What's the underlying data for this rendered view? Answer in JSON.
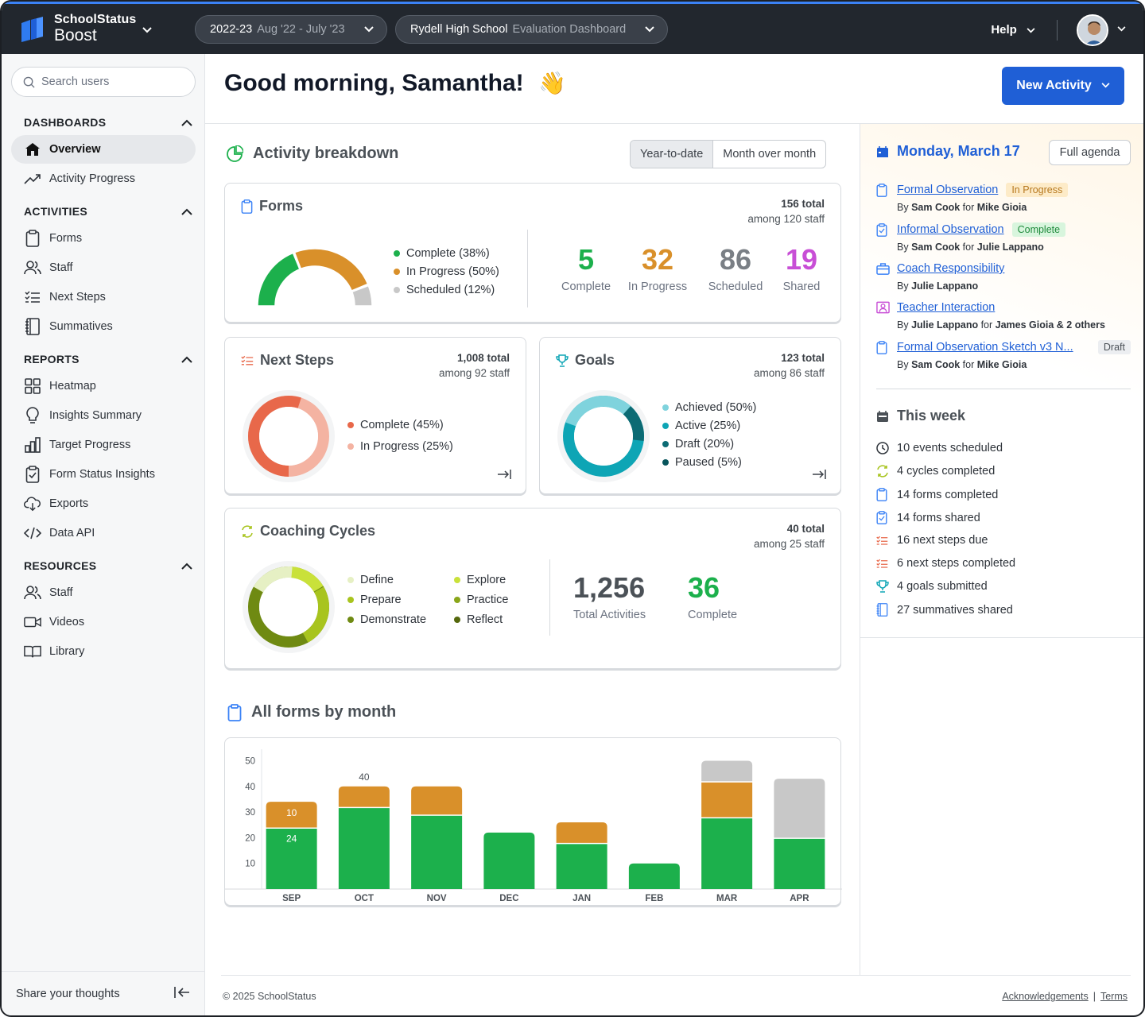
{
  "app": {
    "brand_name": "SchoolStatus",
    "brand_sub": "Boost"
  },
  "topbar": {
    "year": "2022-23",
    "year_range": "Aug '22 - July '23",
    "school": "Rydell High School",
    "dashboard": "Evaluation Dashboard",
    "help": "Help"
  },
  "sidebar": {
    "search_placeholder": "Search users",
    "sections": {
      "dashboards": "DASHBOARDS",
      "activities": "ACTIVITIES",
      "reports": "REPORTS",
      "resources": "RESOURCES"
    },
    "items": {
      "overview": "Overview",
      "activity_progress": "Activity Progress",
      "forms": "Forms",
      "staff": "Staff",
      "next_steps": "Next Steps",
      "summatives": "Summatives",
      "heatmap": "Heatmap",
      "insights_summary": "Insights Summary",
      "target_progress": "Target Progress",
      "form_status_insights": "Form Status Insights",
      "exports": "Exports",
      "data_api": "Data API",
      "res_staff": "Staff",
      "videos": "Videos",
      "library": "Library"
    },
    "footer": "Share your thoughts"
  },
  "main": {
    "greeting": "Good morning, Samantha!",
    "greeting_emoji": "👋",
    "new_activity": "New Activity",
    "activity_breakdown": "Activity breakdown",
    "seg_ytd": "Year-to-date",
    "seg_mom": "Month over month",
    "forms": {
      "title": "Forms",
      "total": "156 total",
      "among": "among 120 staff",
      "legend": [
        "Complete (38%)",
        "In Progress (50%)",
        "Scheduled (12%)"
      ],
      "segments": [
        38,
        50,
        12
      ],
      "colors": [
        "#1cb04c",
        "#d9902a",
        "#c8c8c8"
      ],
      "stats": [
        {
          "num": "5",
          "label": "Complete",
          "color": "#1cb04c"
        },
        {
          "num": "32",
          "label": "In Progress",
          "color": "#d9902a"
        },
        {
          "num": "86",
          "label": "Scheduled",
          "color": "#7a7f85"
        },
        {
          "num": "19",
          "label": "Shared",
          "color": "#c84fd6"
        }
      ]
    },
    "next_steps": {
      "title": "Next Steps",
      "total": "1,008 total",
      "among": "among 92 staff",
      "legend": [
        "Complete (45%)",
        "In Progress (25%)"
      ],
      "colors": [
        "#e8684a",
        "#f4b3a2"
      ]
    },
    "goals": {
      "title": "Goals",
      "total": "123 total",
      "among": "among 86 staff",
      "legend": [
        "Achieved (50%)",
        "Active (25%)",
        "Draft (20%)",
        "Paused (5%)"
      ],
      "colors": [
        "#7fd3dd",
        "#0ea5b5",
        "#0c6b74",
        "#08555c"
      ]
    },
    "coaching": {
      "title": "Coaching Cycles",
      "total": "40 total",
      "among": "among 25 staff",
      "legend": [
        "Define",
        "Explore",
        "Prepare",
        "Practice",
        "Demonstrate",
        "Reflect"
      ],
      "colors": [
        "#e6f0c4",
        "#c9e13a",
        "#a8c41e",
        "#8aa61a",
        "#6f8a12",
        "#55680d"
      ],
      "total_activities": "1,256",
      "total_activities_label": "Total Activities",
      "complete": "36",
      "complete_label": "Complete"
    },
    "all_forms_title": "All forms by month"
  },
  "chart_data": {
    "type": "bar",
    "stacked": true,
    "categories": [
      "SEP",
      "OCT",
      "NOV",
      "DEC",
      "JAN",
      "FEB",
      "MAR",
      "APR"
    ],
    "series": [
      {
        "values": [
          24,
          32,
          29,
          22,
          18,
          10,
          28,
          20
        ],
        "color": "#1cb04c"
      },
      {
        "values": [
          10,
          8,
          11,
          0,
          8,
          0,
          14,
          0
        ],
        "color": "#d9902a"
      },
      {
        "values": [
          0,
          0,
          0,
          0,
          0,
          0,
          8,
          23
        ],
        "color": "#c8c8c8"
      }
    ],
    "data_labels": {
      "SEP": [
        "24",
        "10"
      ],
      "OCT_total": "40"
    },
    "yticks": [
      10,
      20,
      30,
      40,
      50
    ],
    "ylim": [
      0,
      52
    ]
  },
  "agenda": {
    "date": "Monday, March 17",
    "full_agenda": "Full agenda",
    "items": [
      {
        "title": "Formal Observation",
        "badge": "In Progress",
        "by_pre": "By ",
        "by": "Sam Cook",
        "for_pre": " for ",
        "for": "Mike Gioia"
      },
      {
        "title": "Informal Observation",
        "badge": "Complete",
        "by_pre": "By ",
        "by": "Sam Cook",
        "for_pre": " for ",
        "for": "Julie Lappano"
      },
      {
        "title": "Coach Responsibility",
        "badge": "",
        "by_pre": "By ",
        "by": "Julie Lappano",
        "for_pre": "",
        "for": ""
      },
      {
        "title": "Teacher Interaction",
        "badge": "",
        "by_pre": "By ",
        "by": "Julie Lappano",
        "for_pre": " for ",
        "for": "James Gioia & 2 others"
      },
      {
        "title": "Formal Observation Sketch v3 N...",
        "badge": "Draft",
        "by_pre": "By ",
        "by": "Sam Cook",
        "for_pre": " for ",
        "for": "Mike Gioia"
      }
    ]
  },
  "week": {
    "title": "This week",
    "items": [
      "10 events scheduled",
      "4 cycles completed",
      "14 forms completed",
      "14 forms shared",
      "16 next steps due",
      "6 next steps completed",
      "4 goals submitted",
      "27 summatives shared"
    ]
  },
  "footer": {
    "copyright": "© 2025 SchoolStatus",
    "acknowledgements": "Acknowledgements",
    "terms": "Terms"
  }
}
